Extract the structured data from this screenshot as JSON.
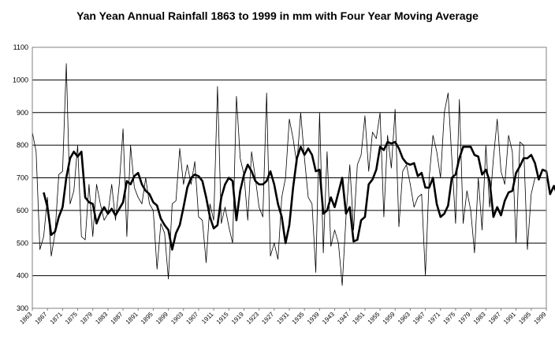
{
  "chart_data": {
    "type": "line",
    "title": "Yan Yean Annual Rainfall 1863 to 1999 in mm with Four Year Moving Average",
    "xlabel": "",
    "ylabel": "",
    "ylim": [
      300,
      1100
    ],
    "yticks": [
      300,
      400,
      500,
      600,
      700,
      800,
      900,
      1000,
      1100
    ],
    "xlim": [
      1863,
      1999
    ],
    "xticks": [
      1863,
      1867,
      1871,
      1875,
      1879,
      1883,
      1887,
      1891,
      1895,
      1899,
      1903,
      1907,
      1911,
      1915,
      1919,
      1923,
      1927,
      1931,
      1935,
      1939,
      1943,
      1947,
      1951,
      1955,
      1959,
      1963,
      1967,
      1971,
      1975,
      1979,
      1983,
      1987,
      1991,
      1995,
      1999
    ],
    "grid": "horizontal",
    "legend": "none",
    "series": [
      {
        "style": "thin",
        "color": "#000000",
        "x_start": 1863,
        "values": [
          840,
          780,
          480,
          520,
          640,
          460,
          530,
          710,
          720,
          1050,
          620,
          660,
          800,
          520,
          510,
          680,
          520,
          680,
          620,
          570,
          590,
          680,
          570,
          680,
          850,
          520,
          800,
          670,
          640,
          620,
          700,
          620,
          600,
          420,
          560,
          530,
          390,
          620,
          630,
          790,
          680,
          740,
          680,
          750,
          580,
          570,
          440,
          620,
          570,
          980,
          560,
          610,
          550,
          500,
          950,
          760,
          710,
          570,
          780,
          700,
          610,
          580,
          960,
          460,
          500,
          450,
          640,
          700,
          880,
          820,
          740,
          900,
          760,
          640,
          620,
          410,
          900,
          470,
          780,
          490,
          540,
          500,
          370,
          580,
          740,
          540,
          740,
          770,
          890,
          720,
          840,
          820,
          900,
          580,
          830,
          730,
          910,
          550,
          720,
          740,
          680,
          610,
          640,
          650,
          400,
          700,
          830,
          780,
          700,
          900,
          960,
          760,
          560,
          940,
          560,
          660,
          600,
          470,
          700,
          540,
          800,
          610,
          760,
          880,
          720,
          680,
          830,
          780,
          500,
          810,
          800,
          480,
          650,
          700
        ]
      },
      {
        "style": "thick",
        "color": "#000000",
        "x_start": 1866,
        "values": [
          655,
          610,
          525,
          535,
          580,
          610,
          700,
          760,
          780,
          765,
          780,
          640,
          625,
          620,
          560,
          590,
          610,
          590,
          605,
          585,
          605,
          625,
          690,
          680,
          705,
          715,
          680,
          660,
          650,
          625,
          615,
          575,
          555,
          540,
          480,
          530,
          555,
          610,
          670,
          700,
          710,
          705,
          690,
          640,
          580,
          545,
          555,
          640,
          680,
          700,
          690,
          570,
          660,
          710,
          740,
          720,
          690,
          680,
          680,
          690,
          720,
          680,
          620,
          580,
          500,
          555,
          670,
          760,
          795,
          770,
          790,
          770,
          720,
          725,
          590,
          600,
          640,
          610,
          655,
          700,
          590,
          610,
          505,
          510,
          570,
          580,
          680,
          695,
          725,
          795,
          785,
          810,
          805,
          810,
          790,
          760,
          745,
          740,
          745,
          705,
          715,
          670,
          670,
          700,
          620,
          580,
          590,
          615,
          700,
          710,
          760,
          795,
          795,
          795,
          770,
          765,
          710,
          725,
          690,
          580,
          610,
          585,
          630,
          655,
          660,
          715,
          735,
          760,
          760,
          770,
          745,
          695,
          725,
          720,
          650,
          675,
          645
        ]
      }
    ]
  }
}
